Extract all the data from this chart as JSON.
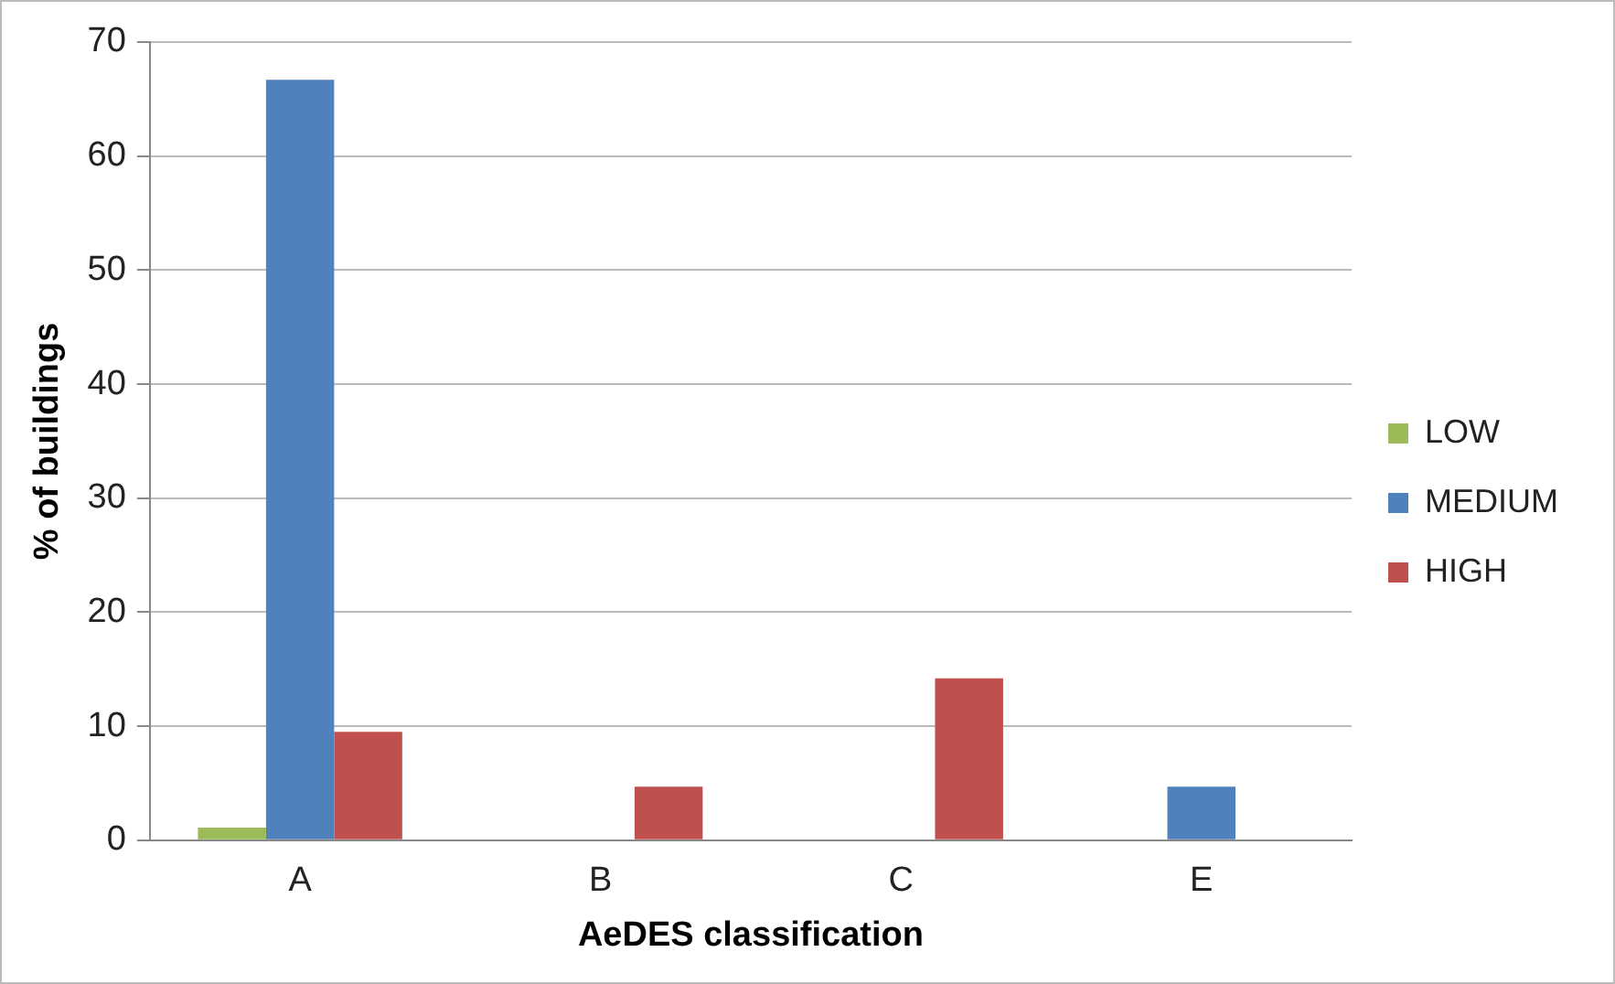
{
  "chart_data": {
    "type": "bar",
    "xlabel": "AeDES classification",
    "ylabel": "% of buildings",
    "categories": [
      "A",
      "B",
      "C",
      "E"
    ],
    "series": [
      {
        "name": "LOW",
        "color": "#9bbb59",
        "values": [
          1.1,
          0,
          0,
          0
        ]
      },
      {
        "name": "MEDIUM",
        "color": "#4f81bd",
        "values": [
          66.7,
          0,
          0,
          4.7
        ]
      },
      {
        "name": "HIGH",
        "color": "#c0504d",
        "values": [
          9.5,
          4.7,
          14.2,
          0
        ]
      }
    ],
    "ylim": [
      0,
      70
    ],
    "yticks": [
      0,
      10,
      20,
      30,
      40,
      50,
      60,
      70
    ],
    "grid": "y",
    "legend": "right"
  }
}
